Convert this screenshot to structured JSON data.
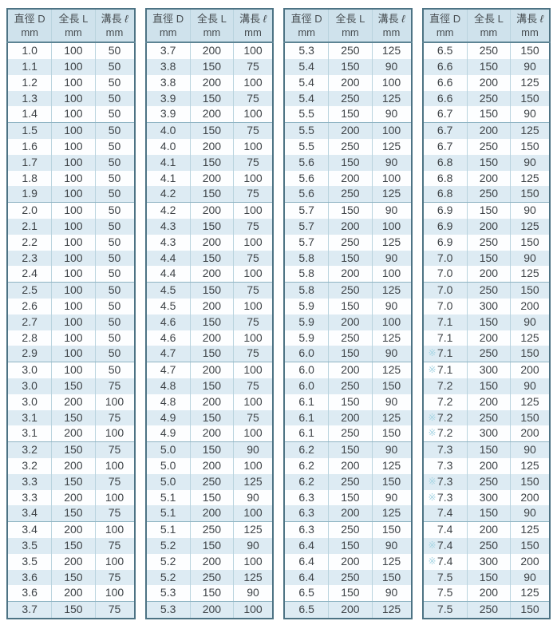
{
  "table": {
    "columns": [
      {
        "label": "直徑 D",
        "unit": "mm"
      },
      {
        "label": "全長 L",
        "unit": "mm"
      },
      {
        "label": "溝長 ℓ",
        "unit": "mm"
      }
    ],
    "reference_mark": "※",
    "groups": [
      {
        "rows": [
          [
            "1.0",
            "100",
            "50"
          ],
          [
            "1.1",
            "100",
            "50"
          ],
          [
            "1.2",
            "100",
            "50"
          ],
          [
            "1.3",
            "100",
            "50"
          ],
          [
            "1.4",
            "100",
            "50"
          ],
          [
            "1.5",
            "100",
            "50"
          ],
          [
            "1.6",
            "100",
            "50"
          ],
          [
            "1.7",
            "100",
            "50"
          ],
          [
            "1.8",
            "100",
            "50"
          ],
          [
            "1.9",
            "100",
            "50"
          ],
          [
            "2.0",
            "100",
            "50"
          ],
          [
            "2.1",
            "100",
            "50"
          ],
          [
            "2.2",
            "100",
            "50"
          ],
          [
            "2.3",
            "100",
            "50"
          ],
          [
            "2.4",
            "100",
            "50"
          ],
          [
            "2.5",
            "100",
            "50"
          ],
          [
            "2.6",
            "100",
            "50"
          ],
          [
            "2.7",
            "100",
            "50"
          ],
          [
            "2.8",
            "100",
            "50"
          ],
          [
            "2.9",
            "100",
            "50"
          ],
          [
            "3.0",
            "100",
            "50"
          ],
          [
            "3.0",
            "150",
            "75"
          ],
          [
            "3.0",
            "200",
            "100"
          ],
          [
            "3.1",
            "150",
            "75"
          ],
          [
            "3.1",
            "200",
            "100"
          ],
          [
            "3.2",
            "150",
            "75"
          ],
          [
            "3.2",
            "200",
            "100"
          ],
          [
            "3.3",
            "150",
            "75"
          ],
          [
            "3.3",
            "200",
            "100"
          ],
          [
            "3.4",
            "150",
            "75"
          ],
          [
            "3.4",
            "200",
            "100"
          ],
          [
            "3.5",
            "150",
            "75"
          ],
          [
            "3.5",
            "200",
            "100"
          ],
          [
            "3.6",
            "150",
            "75"
          ],
          [
            "3.6",
            "200",
            "100"
          ],
          [
            "3.7",
            "150",
            "75"
          ]
        ]
      },
      {
        "rows": [
          [
            "3.7",
            "200",
            "100"
          ],
          [
            "3.8",
            "150",
            "75"
          ],
          [
            "3.8",
            "200",
            "100"
          ],
          [
            "3.9",
            "150",
            "75"
          ],
          [
            "3.9",
            "200",
            "100"
          ],
          [
            "4.0",
            "150",
            "75"
          ],
          [
            "4.0",
            "200",
            "100"
          ],
          [
            "4.1",
            "150",
            "75"
          ],
          [
            "4.1",
            "200",
            "100"
          ],
          [
            "4.2",
            "150",
            "75"
          ],
          [
            "4.2",
            "200",
            "100"
          ],
          [
            "4.3",
            "150",
            "75"
          ],
          [
            "4.3",
            "200",
            "100"
          ],
          [
            "4.4",
            "150",
            "75"
          ],
          [
            "4.4",
            "200",
            "100"
          ],
          [
            "4.5",
            "150",
            "75"
          ],
          [
            "4.5",
            "200",
            "100"
          ],
          [
            "4.6",
            "150",
            "75"
          ],
          [
            "4.6",
            "200",
            "100"
          ],
          [
            "4.7",
            "150",
            "75"
          ],
          [
            "4.7",
            "200",
            "100"
          ],
          [
            "4.8",
            "150",
            "75"
          ],
          [
            "4.8",
            "200",
            "100"
          ],
          [
            "4.9",
            "150",
            "75"
          ],
          [
            "4.9",
            "200",
            "100"
          ],
          [
            "5.0",
            "150",
            "90"
          ],
          [
            "5.0",
            "200",
            "100"
          ],
          [
            "5.0",
            "250",
            "125"
          ],
          [
            "5.1",
            "150",
            "90"
          ],
          [
            "5.1",
            "200",
            "100"
          ],
          [
            "5.1",
            "250",
            "125"
          ],
          [
            "5.2",
            "150",
            "90"
          ],
          [
            "5.2",
            "200",
            "100"
          ],
          [
            "5.2",
            "250",
            "125"
          ],
          [
            "5.3",
            "150",
            "90"
          ],
          [
            "5.3",
            "200",
            "100"
          ]
        ]
      },
      {
        "rows": [
          [
            "5.3",
            "250",
            "125"
          ],
          [
            "5.4",
            "150",
            "90"
          ],
          [
            "5.4",
            "200",
            "100"
          ],
          [
            "5.4",
            "250",
            "125"
          ],
          [
            "5.5",
            "150",
            "90"
          ],
          [
            "5.5",
            "200",
            "100"
          ],
          [
            "5.5",
            "250",
            "125"
          ],
          [
            "5.6",
            "150",
            "90"
          ],
          [
            "5.6",
            "200",
            "100"
          ],
          [
            "5.6",
            "250",
            "125"
          ],
          [
            "5.7",
            "150",
            "90"
          ],
          [
            "5.7",
            "200",
            "100"
          ],
          [
            "5.7",
            "250",
            "125"
          ],
          [
            "5.8",
            "150",
            "90"
          ],
          [
            "5.8",
            "200",
            "100"
          ],
          [
            "5.8",
            "250",
            "125"
          ],
          [
            "5.9",
            "150",
            "90"
          ],
          [
            "5.9",
            "200",
            "100"
          ],
          [
            "5.9",
            "250",
            "125"
          ],
          [
            "6.0",
            "150",
            "90"
          ],
          [
            "6.0",
            "200",
            "125"
          ],
          [
            "6.0",
            "250",
            "150"
          ],
          [
            "6.1",
            "150",
            "90"
          ],
          [
            "6.1",
            "200",
            "125"
          ],
          [
            "6.1",
            "250",
            "150"
          ],
          [
            "6.2",
            "150",
            "90"
          ],
          [
            "6.2",
            "200",
            "125"
          ],
          [
            "6.2",
            "250",
            "150"
          ],
          [
            "6.3",
            "150",
            "90"
          ],
          [
            "6.3",
            "200",
            "125"
          ],
          [
            "6.3",
            "250",
            "150"
          ],
          [
            "6.4",
            "150",
            "90"
          ],
          [
            "6.4",
            "200",
            "125"
          ],
          [
            "6.4",
            "250",
            "150"
          ],
          [
            "6.5",
            "150",
            "90"
          ],
          [
            "6.5",
            "200",
            "125"
          ]
        ]
      },
      {
        "rows": [
          [
            "6.5",
            "250",
            "150"
          ],
          [
            "6.6",
            "150",
            "90"
          ],
          [
            "6.6",
            "200",
            "125"
          ],
          [
            "6.6",
            "250",
            "150"
          ],
          [
            "6.7",
            "150",
            "90"
          ],
          [
            "6.7",
            "200",
            "125"
          ],
          [
            "6.7",
            "250",
            "150"
          ],
          [
            "6.8",
            "150",
            "90"
          ],
          [
            "6.8",
            "200",
            "125"
          ],
          [
            "6.8",
            "250",
            "150"
          ],
          [
            "6.9",
            "150",
            "90"
          ],
          [
            "6.9",
            "200",
            "125"
          ],
          [
            "6.9",
            "250",
            "150"
          ],
          [
            "7.0",
            "150",
            "90"
          ],
          [
            "7.0",
            "200",
            "125"
          ],
          [
            "7.0",
            "250",
            "150"
          ],
          [
            "7.0",
            "300",
            "200"
          ],
          [
            "7.1",
            "150",
            "90"
          ],
          [
            "7.1",
            "200",
            "125"
          ],
          [
            "7.1",
            "250",
            "150",
            "※"
          ],
          [
            "7.1",
            "300",
            "200",
            "※"
          ],
          [
            "7.2",
            "150",
            "90"
          ],
          [
            "7.2",
            "200",
            "125"
          ],
          [
            "7.2",
            "250",
            "150",
            "※"
          ],
          [
            "7.2",
            "300",
            "200",
            "※"
          ],
          [
            "7.3",
            "150",
            "90"
          ],
          [
            "7.3",
            "200",
            "125"
          ],
          [
            "7.3",
            "250",
            "150",
            "※"
          ],
          [
            "7.3",
            "300",
            "200",
            "※"
          ],
          [
            "7.4",
            "150",
            "90"
          ],
          [
            "7.4",
            "200",
            "125"
          ],
          [
            "7.4",
            "250",
            "150",
            "※"
          ],
          [
            "7.4",
            "300",
            "200",
            "※"
          ],
          [
            "7.5",
            "150",
            "90"
          ],
          [
            "7.5",
            "200",
            "125"
          ],
          [
            "7.5",
            "250",
            "150"
          ]
        ]
      }
    ]
  },
  "colors": {
    "border": "#4d7384",
    "header_bg": "#cfe2ec",
    "stripe_bg": "#ddebf3",
    "column_line": "#b9d3de",
    "group_separator": "#8fb4c3",
    "header_underline": "#5d8494",
    "text": "#3e4347",
    "mark": "#a9d6e4"
  }
}
